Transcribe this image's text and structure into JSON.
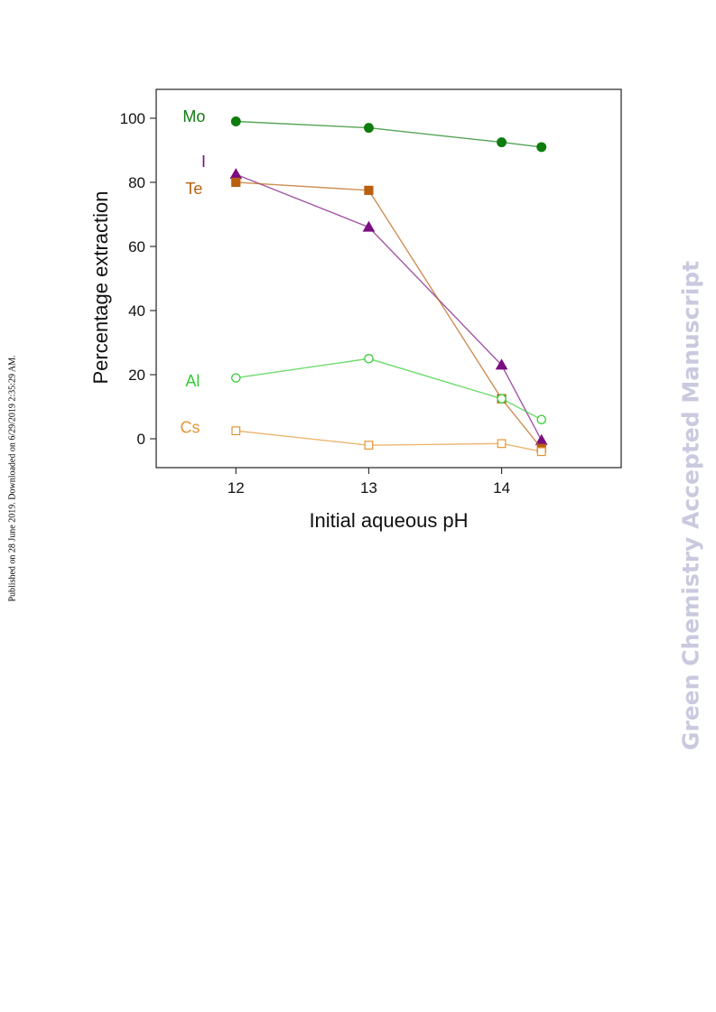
{
  "side_note": "Published on 28 June 2019. Downloaded on 6/29/2019 2:35:29 AM.",
  "watermark": "Green Chemistry Accepted Manuscript",
  "chart_data": {
    "type": "line",
    "xlabel": "Initial aqueous pH",
    "ylabel": "Percentage extraction",
    "xlim": [
      11.4,
      14.9
    ],
    "ylim": [
      -9,
      109
    ],
    "xticks": [
      12,
      13,
      14
    ],
    "yticks": [
      0,
      20,
      40,
      60,
      80,
      100
    ],
    "grid": false,
    "series": [
      {
        "name": "Mo",
        "color": "#0e7d0e",
        "marker": "circle",
        "filled": true,
        "x": [
          12,
          13,
          14,
          14.3
        ],
        "y": [
          99,
          97,
          92.5,
          91
        ],
        "label_at": {
          "x": 11.6,
          "y": 100.5
        }
      },
      {
        "name": "I",
        "color": "#7a0d80",
        "marker": "triangle",
        "filled": true,
        "x": [
          12,
          13,
          14,
          14.3
        ],
        "y": [
          82.5,
          66,
          23,
          -0.5
        ],
        "label_at": {
          "x": 11.74,
          "y": 86.5
        }
      },
      {
        "name": "Te",
        "color": "#b9600f",
        "marker": "square",
        "filled": true,
        "x": [
          12,
          13,
          14,
          14.3
        ],
        "y": [
          80,
          77.5,
          12.5,
          -3
        ],
        "label_at": {
          "x": 11.62,
          "y": 78
        }
      },
      {
        "name": "Al",
        "color": "#33cc33",
        "marker": "circle",
        "filled": false,
        "x": [
          12,
          13,
          14,
          14.3
        ],
        "y": [
          19,
          25,
          12.5,
          6
        ],
        "label_at": {
          "x": 11.62,
          "y": 18
        }
      },
      {
        "name": "Cs",
        "color": "#e69533",
        "marker": "square",
        "filled": false,
        "x": [
          12,
          13,
          14,
          14.3
        ],
        "y": [
          2.5,
          -2,
          -1.5,
          -4
        ],
        "label_at": {
          "x": 11.58,
          "y": 3.5
        }
      }
    ]
  }
}
